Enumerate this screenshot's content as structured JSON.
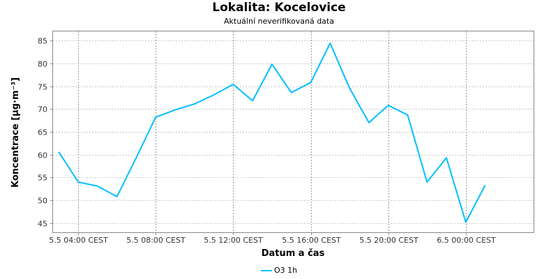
{
  "chart_data": {
    "type": "line",
    "title": "Lokalita: Kocelovice",
    "subtitle": "Aktuální neverifikovaná data",
    "xlabel": "Datum a čas",
    "ylabel": "Koncentrace [µg·m⁻³]",
    "ylim": [
      43,
      87
    ],
    "yticks": [
      45,
      50,
      55,
      60,
      65,
      70,
      75,
      80,
      85
    ],
    "xlim": [
      "2024-05-05T02:42",
      "2024-05-06T03:30"
    ],
    "xticks": [
      {
        "t": "2024-05-05T04:00",
        "label": "5.5 04:00 CEST"
      },
      {
        "t": "2024-05-05T08:00",
        "label": "5.5 08:00 CEST"
      },
      {
        "t": "2024-05-05T12:00",
        "label": "5.5 12:00 CEST"
      },
      {
        "t": "2024-05-05T16:00",
        "label": "5.5 16:00 CEST"
      },
      {
        "t": "2024-05-05T20:00",
        "label": "5.5 20:00 CEST"
      },
      {
        "t": "2024-05-06T00:00",
        "label": "6.5 00:00 CEST"
      }
    ],
    "grid": true,
    "legend_position": "bottom",
    "series": [
      {
        "name": "O3 1h",
        "color": "#00bfff",
        "x": [
          "2024-05-05T03:00",
          "2024-05-05T04:00",
          "2024-05-05T05:00",
          "2024-05-05T06:00",
          "2024-05-05T07:00",
          "2024-05-05T08:00",
          "2024-05-05T09:00",
          "2024-05-05T10:00",
          "2024-05-05T11:00",
          "2024-05-05T12:00",
          "2024-05-05T13:00",
          "2024-05-05T14:00",
          "2024-05-05T15:00",
          "2024-05-05T16:00",
          "2024-05-05T17:00",
          "2024-05-05T18:00",
          "2024-05-05T19:00",
          "2024-05-05T20:00",
          "2024-05-05T21:00",
          "2024-05-05T22:00",
          "2024-05-05T23:00",
          "2024-05-06T00:00",
          "2024-05-06T01:00"
        ],
        "values": [
          60.6,
          54.0,
          53.1,
          50.8,
          59.4,
          68.2,
          69.8,
          71.1,
          73.1,
          75.4,
          71.8,
          79.8,
          73.6,
          75.8,
          84.4,
          74.6,
          67.0,
          70.8,
          68.7,
          54.0,
          59.3,
          45.2,
          53.3
        ]
      }
    ]
  }
}
